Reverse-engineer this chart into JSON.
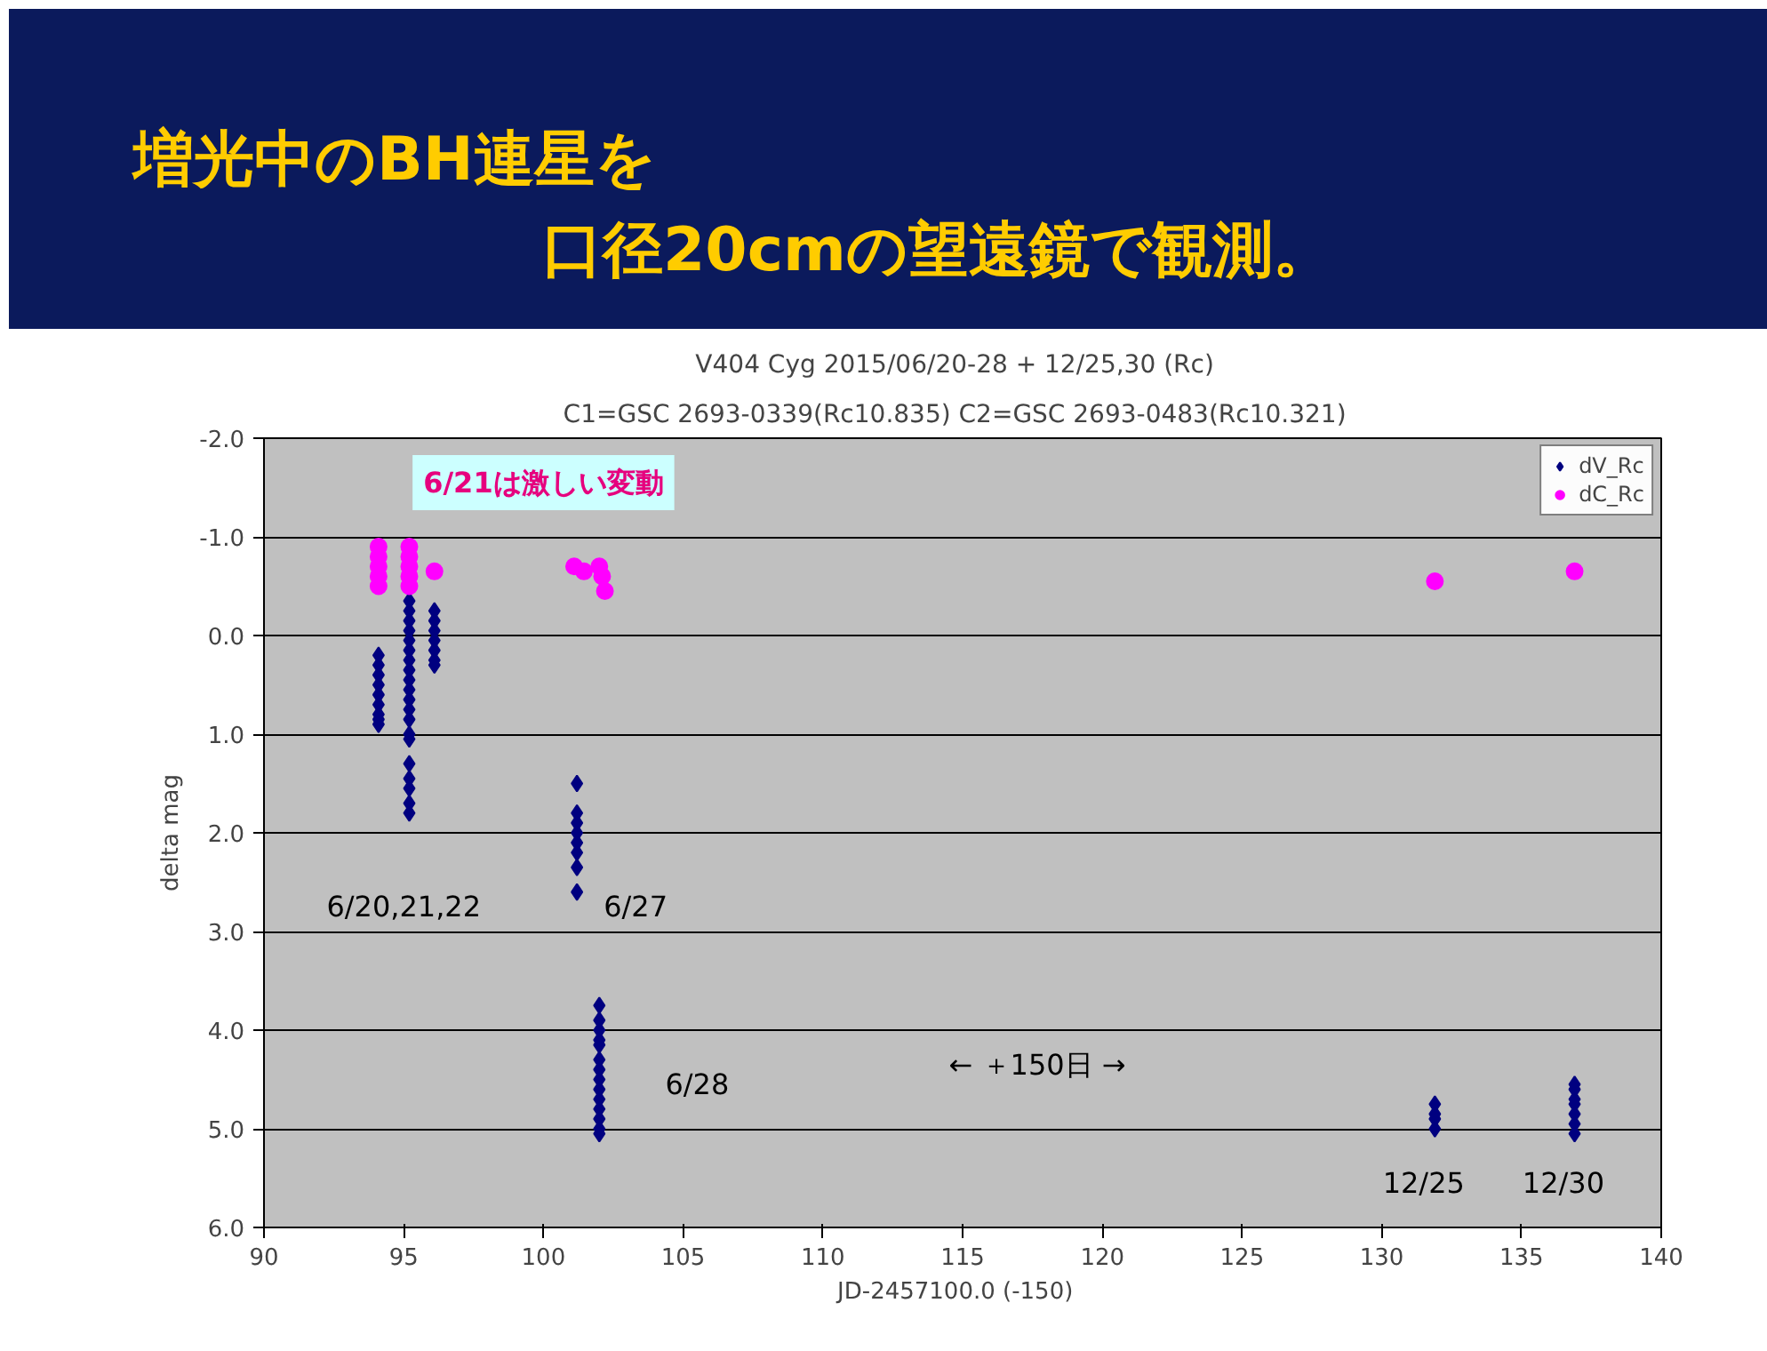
{
  "chart_data": {
    "type": "scatter",
    "title": "V404 Cyg  2015/06/20-28 + 12/25,30  (Rc)",
    "subtitle": "C1=GSC 2693-0339(Rc10.835)   C2=GSC 2693-0483(Rc10.321)",
    "xlabel": "JD-2457100.0   (-150)",
    "ylabel": "delta mag",
    "xlim": [
      90,
      140
    ],
    "ylim": [
      6,
      -2
    ],
    "xticks": [
      90,
      95,
      100,
      105,
      110,
      115,
      120,
      125,
      130,
      135,
      140
    ],
    "yticks": [
      {
        "value": -2,
        "label": "-2.0"
      },
      {
        "value": -1,
        "label": "-1.0"
      },
      {
        "value": 0,
        "label": "0.0"
      },
      {
        "value": 1,
        "label": "1.0"
      },
      {
        "value": 2,
        "label": "2.0"
      },
      {
        "value": 3,
        "label": "3.0"
      },
      {
        "value": 4,
        "label": "4.0"
      },
      {
        "value": 5,
        "label": "5.0"
      },
      {
        "value": 6,
        "label": "6.0"
      }
    ],
    "grid": "y",
    "legend": "top right",
    "series": [
      {
        "name": "dV_Rc",
        "color": "#000080",
        "marker": "diamond",
        "x": [
          94.1,
          94.1,
          94.1,
          94.1,
          94.1,
          94.1,
          94.1,
          94.1,
          94.1,
          95.2,
          95.2,
          95.2,
          95.2,
          95.2,
          95.2,
          95.2,
          95.2,
          95.2,
          95.2,
          95.2,
          95.2,
          95.2,
          95.2,
          95.2,
          95.2,
          95.2,
          95.2,
          95.2,
          95.2,
          96.1,
          96.1,
          96.1,
          96.1,
          96.1,
          96.1,
          96.1,
          101.2,
          101.2,
          101.2,
          101.2,
          101.2,
          101.2,
          101.2,
          101.2,
          102.0,
          102.0,
          102.0,
          102.0,
          102.0,
          102.0,
          102.0,
          102.0,
          102.0,
          102.0,
          102.0,
          102.0,
          102.0,
          102.0,
          131.9,
          131.9,
          131.9,
          131.9,
          136.9,
          136.9,
          136.9,
          136.9,
          136.9,
          136.9,
          136.9
        ],
        "values": [
          0.2,
          0.3,
          0.4,
          0.5,
          0.6,
          0.7,
          0.8,
          0.9,
          0.85,
          -0.35,
          -0.25,
          -0.15,
          -0.05,
          0.05,
          0.15,
          0.25,
          0.35,
          0.45,
          0.55,
          0.65,
          0.75,
          0.85,
          1.0,
          1.05,
          1.3,
          1.45,
          1.55,
          1.7,
          1.8,
          -0.25,
          -0.15,
          -0.05,
          0.05,
          0.15,
          0.25,
          0.3,
          1.5,
          1.8,
          1.9,
          2.0,
          2.1,
          2.2,
          2.35,
          2.6,
          3.75,
          3.9,
          4.0,
          4.15,
          4.3,
          4.4,
          4.5,
          4.6,
          4.7,
          4.8,
          4.9,
          5.0,
          5.05,
          4.1,
          4.75,
          4.85,
          4.9,
          5.0,
          4.55,
          4.6,
          4.7,
          4.75,
          4.85,
          4.95,
          5.05
        ]
      },
      {
        "name": "dC_Rc",
        "color": "#ff00ff",
        "marker": "circle",
        "x": [
          94.1,
          94.1,
          94.1,
          94.1,
          94.1,
          95.2,
          95.2,
          95.2,
          95.2,
          95.2,
          96.1,
          101.1,
          101.45,
          102.0,
          102.1,
          102.2,
          131.9,
          136.9
        ],
        "values": [
          -0.9,
          -0.8,
          -0.7,
          -0.6,
          -0.5,
          -0.9,
          -0.8,
          -0.7,
          -0.6,
          -0.5,
          -0.65,
          -0.7,
          -0.65,
          -0.7,
          -0.6,
          -0.45,
          -0.55,
          -0.65
        ]
      }
    ],
    "annotations": [
      "増光中のBH連星を",
      "口径20cmの望遠鏡で観測。",
      "6/21は激しい変動",
      "6/20,21,22",
      "6/27",
      "6/28",
      "←  ＋150日  →",
      "12/25",
      "12/30"
    ]
  }
}
